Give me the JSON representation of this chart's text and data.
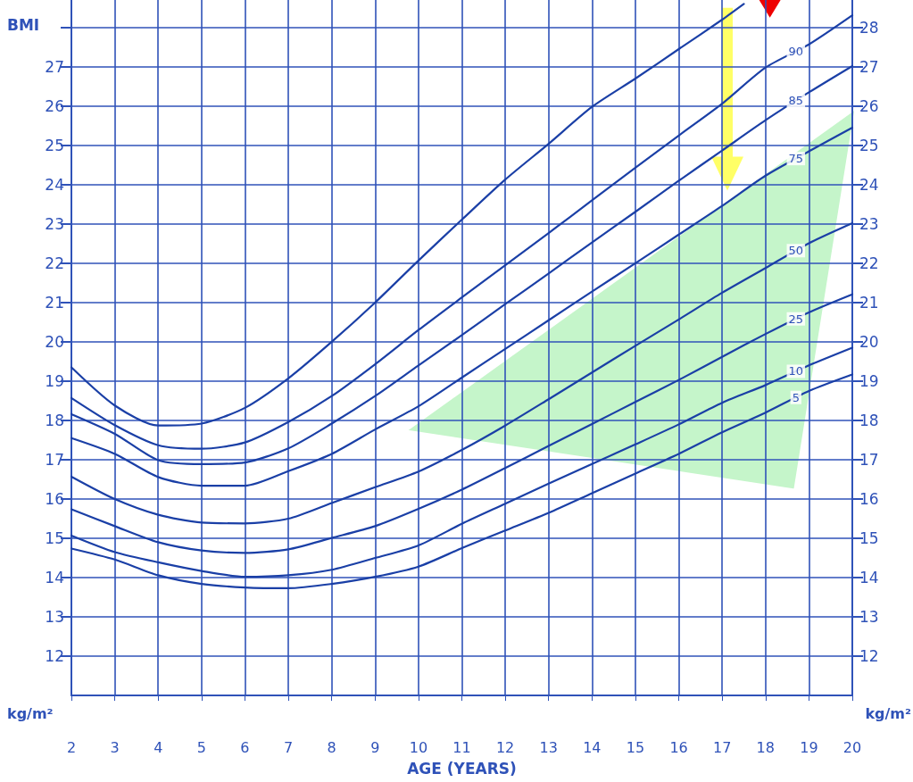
{
  "chart_data": {
    "type": "line",
    "ylabel": "BMI",
    "xlabel": "AGE (YEARS)",
    "xlim": [
      2,
      20
    ],
    "xticks": [
      2,
      3,
      4,
      5,
      6,
      7,
      8,
      9,
      10,
      11,
      12,
      13,
      14,
      15,
      16,
      17,
      18,
      19,
      20
    ],
    "ylim": [
      11,
      28.7
    ],
    "yticks": [
      12,
      13,
      14,
      15,
      16,
      17,
      18,
      19,
      20,
      21,
      22,
      23,
      24,
      25,
      26,
      27,
      {
        "value": 28,
        "label": null
      }
    ],
    "y2lim": [
      11,
      28.7
    ],
    "y2ticks": [
      12,
      13,
      14,
      15,
      16,
      17,
      18,
      19,
      20,
      21,
      22,
      23,
      24,
      25,
      26,
      27,
      28
    ],
    "grid": true,
    "marker": "none",
    "line_style": "solid",
    "series": [
      {
        "color": "#1a3fa6",
        "x": [
          2,
          3,
          4,
          5,
          6,
          7,
          8,
          9,
          10,
          11,
          12,
          13,
          14,
          15,
          16,
          17,
          17.5
        ],
        "values": [
          19.35,
          18.38,
          17.87,
          17.92,
          18.32,
          19.07,
          20.0,
          21.0,
          22.07,
          23.11,
          24.13,
          25.04,
          25.98,
          26.7,
          27.45,
          28.2,
          28.6
        ]
      },
      {
        "name": "90",
        "color": "#1a3fa6",
        "x": [
          2,
          3,
          4,
          5,
          6,
          7,
          8,
          9,
          10,
          11,
          12,
          13,
          14,
          15,
          16,
          17,
          18,
          19,
          20
        ],
        "values": [
          18.57,
          17.88,
          17.37,
          17.28,
          17.44,
          17.96,
          18.62,
          19.43,
          20.3,
          21.13,
          21.95,
          22.77,
          23.6,
          24.43,
          25.25,
          26.06,
          26.98,
          27.57,
          28.31
        ]
      },
      {
        "name": "85",
        "color": "#1a3fa6",
        "x": [
          2,
          3,
          4,
          5,
          6,
          7,
          8,
          9,
          10,
          11,
          12,
          13,
          14,
          15,
          16,
          17,
          18,
          19,
          20
        ],
        "values": [
          18.16,
          17.66,
          16.99,
          16.89,
          16.93,
          17.29,
          17.92,
          18.62,
          19.4,
          20.17,
          20.96,
          21.74,
          22.53,
          23.31,
          24.1,
          24.87,
          25.64,
          26.35,
          27.02
        ]
      },
      {
        "name": "75",
        "color": "#1a3fa6",
        "x": [
          2,
          3,
          4,
          5,
          6,
          7,
          8,
          9,
          10,
          11,
          12,
          13,
          14,
          15,
          16,
          17,
          18,
          19,
          20
        ],
        "values": [
          17.55,
          17.15,
          16.56,
          16.34,
          16.34,
          16.71,
          17.15,
          17.77,
          18.36,
          19.09,
          19.82,
          20.55,
          21.28,
          22.0,
          22.73,
          23.46,
          24.23,
          24.85,
          25.45
        ]
      },
      {
        "name": "50",
        "color": "#1a3fa6",
        "x": [
          2,
          3,
          4,
          5,
          6,
          7,
          8,
          9,
          10,
          11,
          12,
          13,
          14,
          15,
          16,
          17,
          18,
          19,
          20
        ],
        "values": [
          16.57,
          16.0,
          15.6,
          15.4,
          15.38,
          15.5,
          15.9,
          16.3,
          16.7,
          17.25,
          17.87,
          18.54,
          19.22,
          19.9,
          20.57,
          21.25,
          21.88,
          22.51,
          23.02
        ]
      },
      {
        "name": "25",
        "color": "#1a3fa6",
        "x": [
          2,
          3,
          4,
          5,
          6,
          7,
          8,
          9,
          10,
          11,
          12,
          13,
          14,
          15,
          16,
          17,
          18,
          19,
          20
        ],
        "values": [
          15.74,
          15.31,
          14.9,
          14.69,
          14.63,
          14.72,
          15.01,
          15.31,
          15.75,
          16.24,
          16.79,
          17.35,
          17.91,
          18.47,
          19.03,
          19.62,
          20.2,
          20.75,
          21.21
        ]
      },
      {
        "name": "10",
        "color": "#1a3fa6",
        "x": [
          2,
          3,
          4,
          5,
          6,
          7,
          8,
          9,
          10,
          11,
          12,
          13,
          14,
          15,
          16,
          17,
          18,
          19,
          20
        ],
        "values": [
          15.07,
          14.65,
          14.39,
          14.17,
          14.02,
          14.06,
          14.2,
          14.5,
          14.82,
          15.37,
          15.88,
          16.39,
          16.89,
          17.39,
          17.9,
          18.45,
          18.9,
          19.4,
          19.85
        ]
      },
      {
        "name": "5",
        "color": "#1a3fa6",
        "x": [
          2,
          3,
          4,
          5,
          6,
          7,
          8,
          9,
          10,
          11,
          12,
          13,
          14,
          15,
          16,
          17,
          18,
          19,
          20
        ],
        "values": [
          14.74,
          14.46,
          14.06,
          13.84,
          13.75,
          13.73,
          13.84,
          14.02,
          14.28,
          14.75,
          15.2,
          15.65,
          16.15,
          16.65,
          17.15,
          17.7,
          18.2,
          18.75,
          19.17
        ]
      }
    ],
    "annotations": [
      "kg/m²",
      "kg/m²"
    ]
  }
}
